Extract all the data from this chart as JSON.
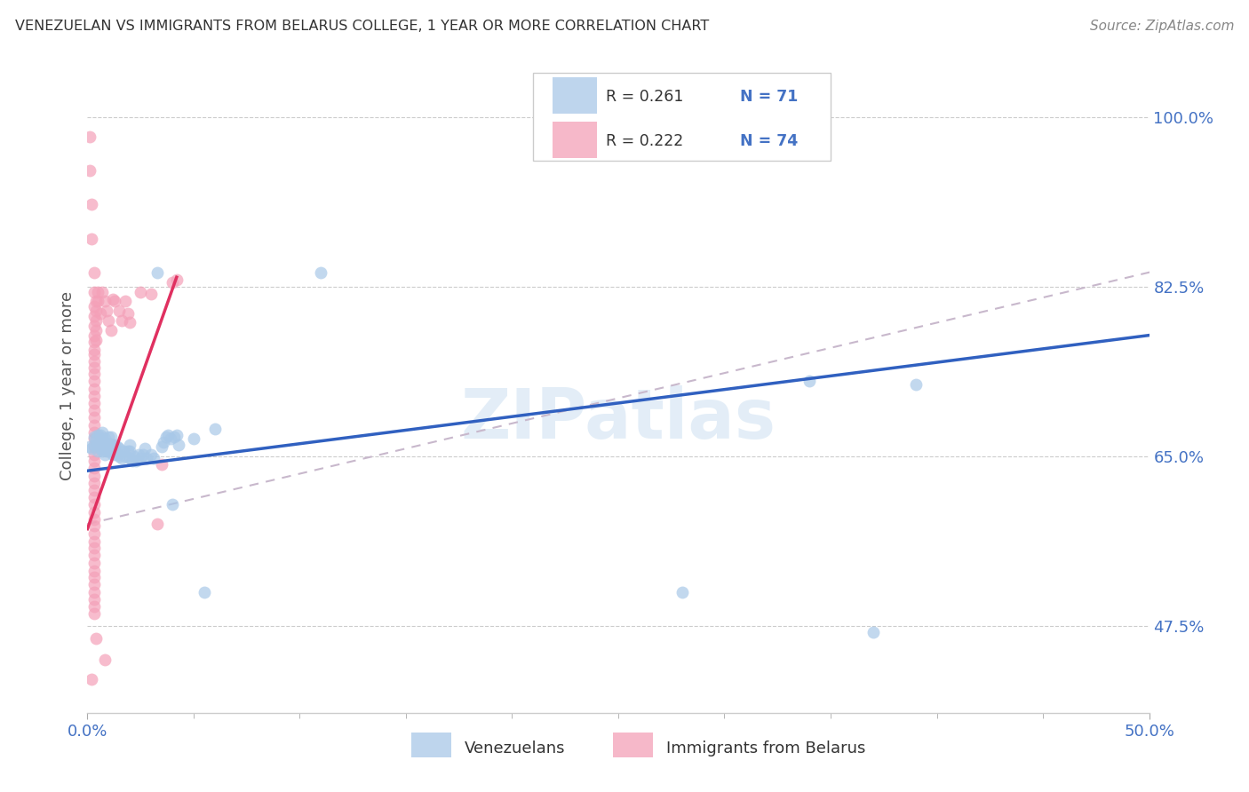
{
  "title": "VENEZUELAN VS IMMIGRANTS FROM BELARUS COLLEGE, 1 YEAR OR MORE CORRELATION CHART",
  "source": "Source: ZipAtlas.com",
  "ylabel_label": "College, 1 year or more",
  "xmin": 0.0,
  "xmax": 0.5,
  "ymin": 0.385,
  "ymax": 1.06,
  "blue_color": "#a8c8e8",
  "pink_color": "#f4a0b8",
  "blue_line_color": "#3060c0",
  "pink_line_color": "#e03060",
  "diagonal_color": "#c8b8cc",
  "watermark": "ZIPatlas",
  "ytick_vals": [
    0.475,
    0.65,
    0.825,
    1.0
  ],
  "ytick_labels": [
    "47.5%",
    "65.0%",
    "82.5%",
    "100.0%"
  ],
  "xtick_vals": [
    0.0,
    0.5
  ],
  "xtick_labels": [
    "0.0%",
    "50.0%"
  ],
  "blue_points": [
    [
      0.001,
      0.66
    ],
    [
      0.002,
      0.658
    ],
    [
      0.003,
      0.662
    ],
    [
      0.003,
      0.67
    ],
    [
      0.004,
      0.668
    ],
    [
      0.005,
      0.655
    ],
    [
      0.005,
      0.662
    ],
    [
      0.005,
      0.672
    ],
    [
      0.006,
      0.658
    ],
    [
      0.006,
      0.665
    ],
    [
      0.006,
      0.672
    ],
    [
      0.007,
      0.655
    ],
    [
      0.007,
      0.662
    ],
    [
      0.007,
      0.668
    ],
    [
      0.007,
      0.675
    ],
    [
      0.008,
      0.652
    ],
    [
      0.008,
      0.66
    ],
    [
      0.008,
      0.668
    ],
    [
      0.009,
      0.655
    ],
    [
      0.009,
      0.662
    ],
    [
      0.01,
      0.655
    ],
    [
      0.01,
      0.663
    ],
    [
      0.01,
      0.67
    ],
    [
      0.011,
      0.655
    ],
    [
      0.011,
      0.663
    ],
    [
      0.011,
      0.67
    ],
    [
      0.012,
      0.652
    ],
    [
      0.012,
      0.66
    ],
    [
      0.013,
      0.655
    ],
    [
      0.013,
      0.662
    ],
    [
      0.014,
      0.652
    ],
    [
      0.014,
      0.66
    ],
    [
      0.015,
      0.65
    ],
    [
      0.015,
      0.658
    ],
    [
      0.016,
      0.648
    ],
    [
      0.017,
      0.655
    ],
    [
      0.018,
      0.65
    ],
    [
      0.019,
      0.655
    ],
    [
      0.02,
      0.648
    ],
    [
      0.02,
      0.655
    ],
    [
      0.02,
      0.662
    ],
    [
      0.021,
      0.645
    ],
    [
      0.022,
      0.65
    ],
    [
      0.023,
      0.645
    ],
    [
      0.024,
      0.652
    ],
    [
      0.025,
      0.648
    ],
    [
      0.026,
      0.652
    ],
    [
      0.027,
      0.658
    ],
    [
      0.028,
      0.648
    ],
    [
      0.03,
      0.652
    ],
    [
      0.031,
      0.648
    ],
    [
      0.033,
      0.84
    ],
    [
      0.035,
      0.66
    ],
    [
      0.036,
      0.665
    ],
    [
      0.037,
      0.67
    ],
    [
      0.038,
      0.672
    ],
    [
      0.039,
      0.668
    ],
    [
      0.04,
      0.6
    ],
    [
      0.041,
      0.67
    ],
    [
      0.042,
      0.672
    ],
    [
      0.043,
      0.662
    ],
    [
      0.05,
      0.668
    ],
    [
      0.055,
      0.51
    ],
    [
      0.06,
      0.678
    ],
    [
      0.11,
      0.84
    ],
    [
      0.34,
      0.728
    ],
    [
      0.39,
      0.724
    ],
    [
      0.37,
      0.468
    ],
    [
      0.28,
      0.51
    ]
  ],
  "pink_points": [
    [
      0.001,
      0.98
    ],
    [
      0.001,
      0.945
    ],
    [
      0.002,
      0.91
    ],
    [
      0.002,
      0.875
    ],
    [
      0.002,
      0.42
    ],
    [
      0.003,
      0.84
    ],
    [
      0.003,
      0.82
    ],
    [
      0.003,
      0.805
    ],
    [
      0.003,
      0.795
    ],
    [
      0.003,
      0.785
    ],
    [
      0.003,
      0.775
    ],
    [
      0.003,
      0.768
    ],
    [
      0.003,
      0.76
    ],
    [
      0.003,
      0.755
    ],
    [
      0.003,
      0.748
    ],
    [
      0.003,
      0.742
    ],
    [
      0.003,
      0.735
    ],
    [
      0.003,
      0.728
    ],
    [
      0.003,
      0.72
    ],
    [
      0.003,
      0.712
    ],
    [
      0.003,
      0.705
    ],
    [
      0.003,
      0.698
    ],
    [
      0.003,
      0.69
    ],
    [
      0.003,
      0.682
    ],
    [
      0.003,
      0.675
    ],
    [
      0.003,
      0.668
    ],
    [
      0.003,
      0.66
    ],
    [
      0.003,
      0.652
    ],
    [
      0.003,
      0.645
    ],
    [
      0.003,
      0.638
    ],
    [
      0.003,
      0.63
    ],
    [
      0.003,
      0.622
    ],
    [
      0.003,
      0.615
    ],
    [
      0.003,
      0.608
    ],
    [
      0.003,
      0.6
    ],
    [
      0.003,
      0.592
    ],
    [
      0.003,
      0.585
    ],
    [
      0.003,
      0.578
    ],
    [
      0.003,
      0.57
    ],
    [
      0.003,
      0.562
    ],
    [
      0.003,
      0.555
    ],
    [
      0.003,
      0.548
    ],
    [
      0.003,
      0.54
    ],
    [
      0.003,
      0.532
    ],
    [
      0.003,
      0.525
    ],
    [
      0.003,
      0.518
    ],
    [
      0.003,
      0.51
    ],
    [
      0.003,
      0.502
    ],
    [
      0.003,
      0.495
    ],
    [
      0.003,
      0.488
    ],
    [
      0.004,
      0.81
    ],
    [
      0.004,
      0.8
    ],
    [
      0.004,
      0.79
    ],
    [
      0.004,
      0.78
    ],
    [
      0.004,
      0.77
    ],
    [
      0.005,
      0.82
    ],
    [
      0.005,
      0.81
    ],
    [
      0.006,
      0.798
    ],
    [
      0.007,
      0.82
    ],
    [
      0.008,
      0.81
    ],
    [
      0.009,
      0.8
    ],
    [
      0.01,
      0.79
    ],
    [
      0.011,
      0.78
    ],
    [
      0.012,
      0.812
    ],
    [
      0.013,
      0.81
    ],
    [
      0.015,
      0.8
    ],
    [
      0.016,
      0.79
    ],
    [
      0.018,
      0.81
    ],
    [
      0.019,
      0.798
    ],
    [
      0.02,
      0.788
    ],
    [
      0.025,
      0.82
    ],
    [
      0.03,
      0.818
    ],
    [
      0.033,
      0.58
    ],
    [
      0.035,
      0.642
    ],
    [
      0.04,
      0.83
    ],
    [
      0.042,
      0.832
    ],
    [
      0.008,
      0.44
    ],
    [
      0.004,
      0.462
    ]
  ]
}
